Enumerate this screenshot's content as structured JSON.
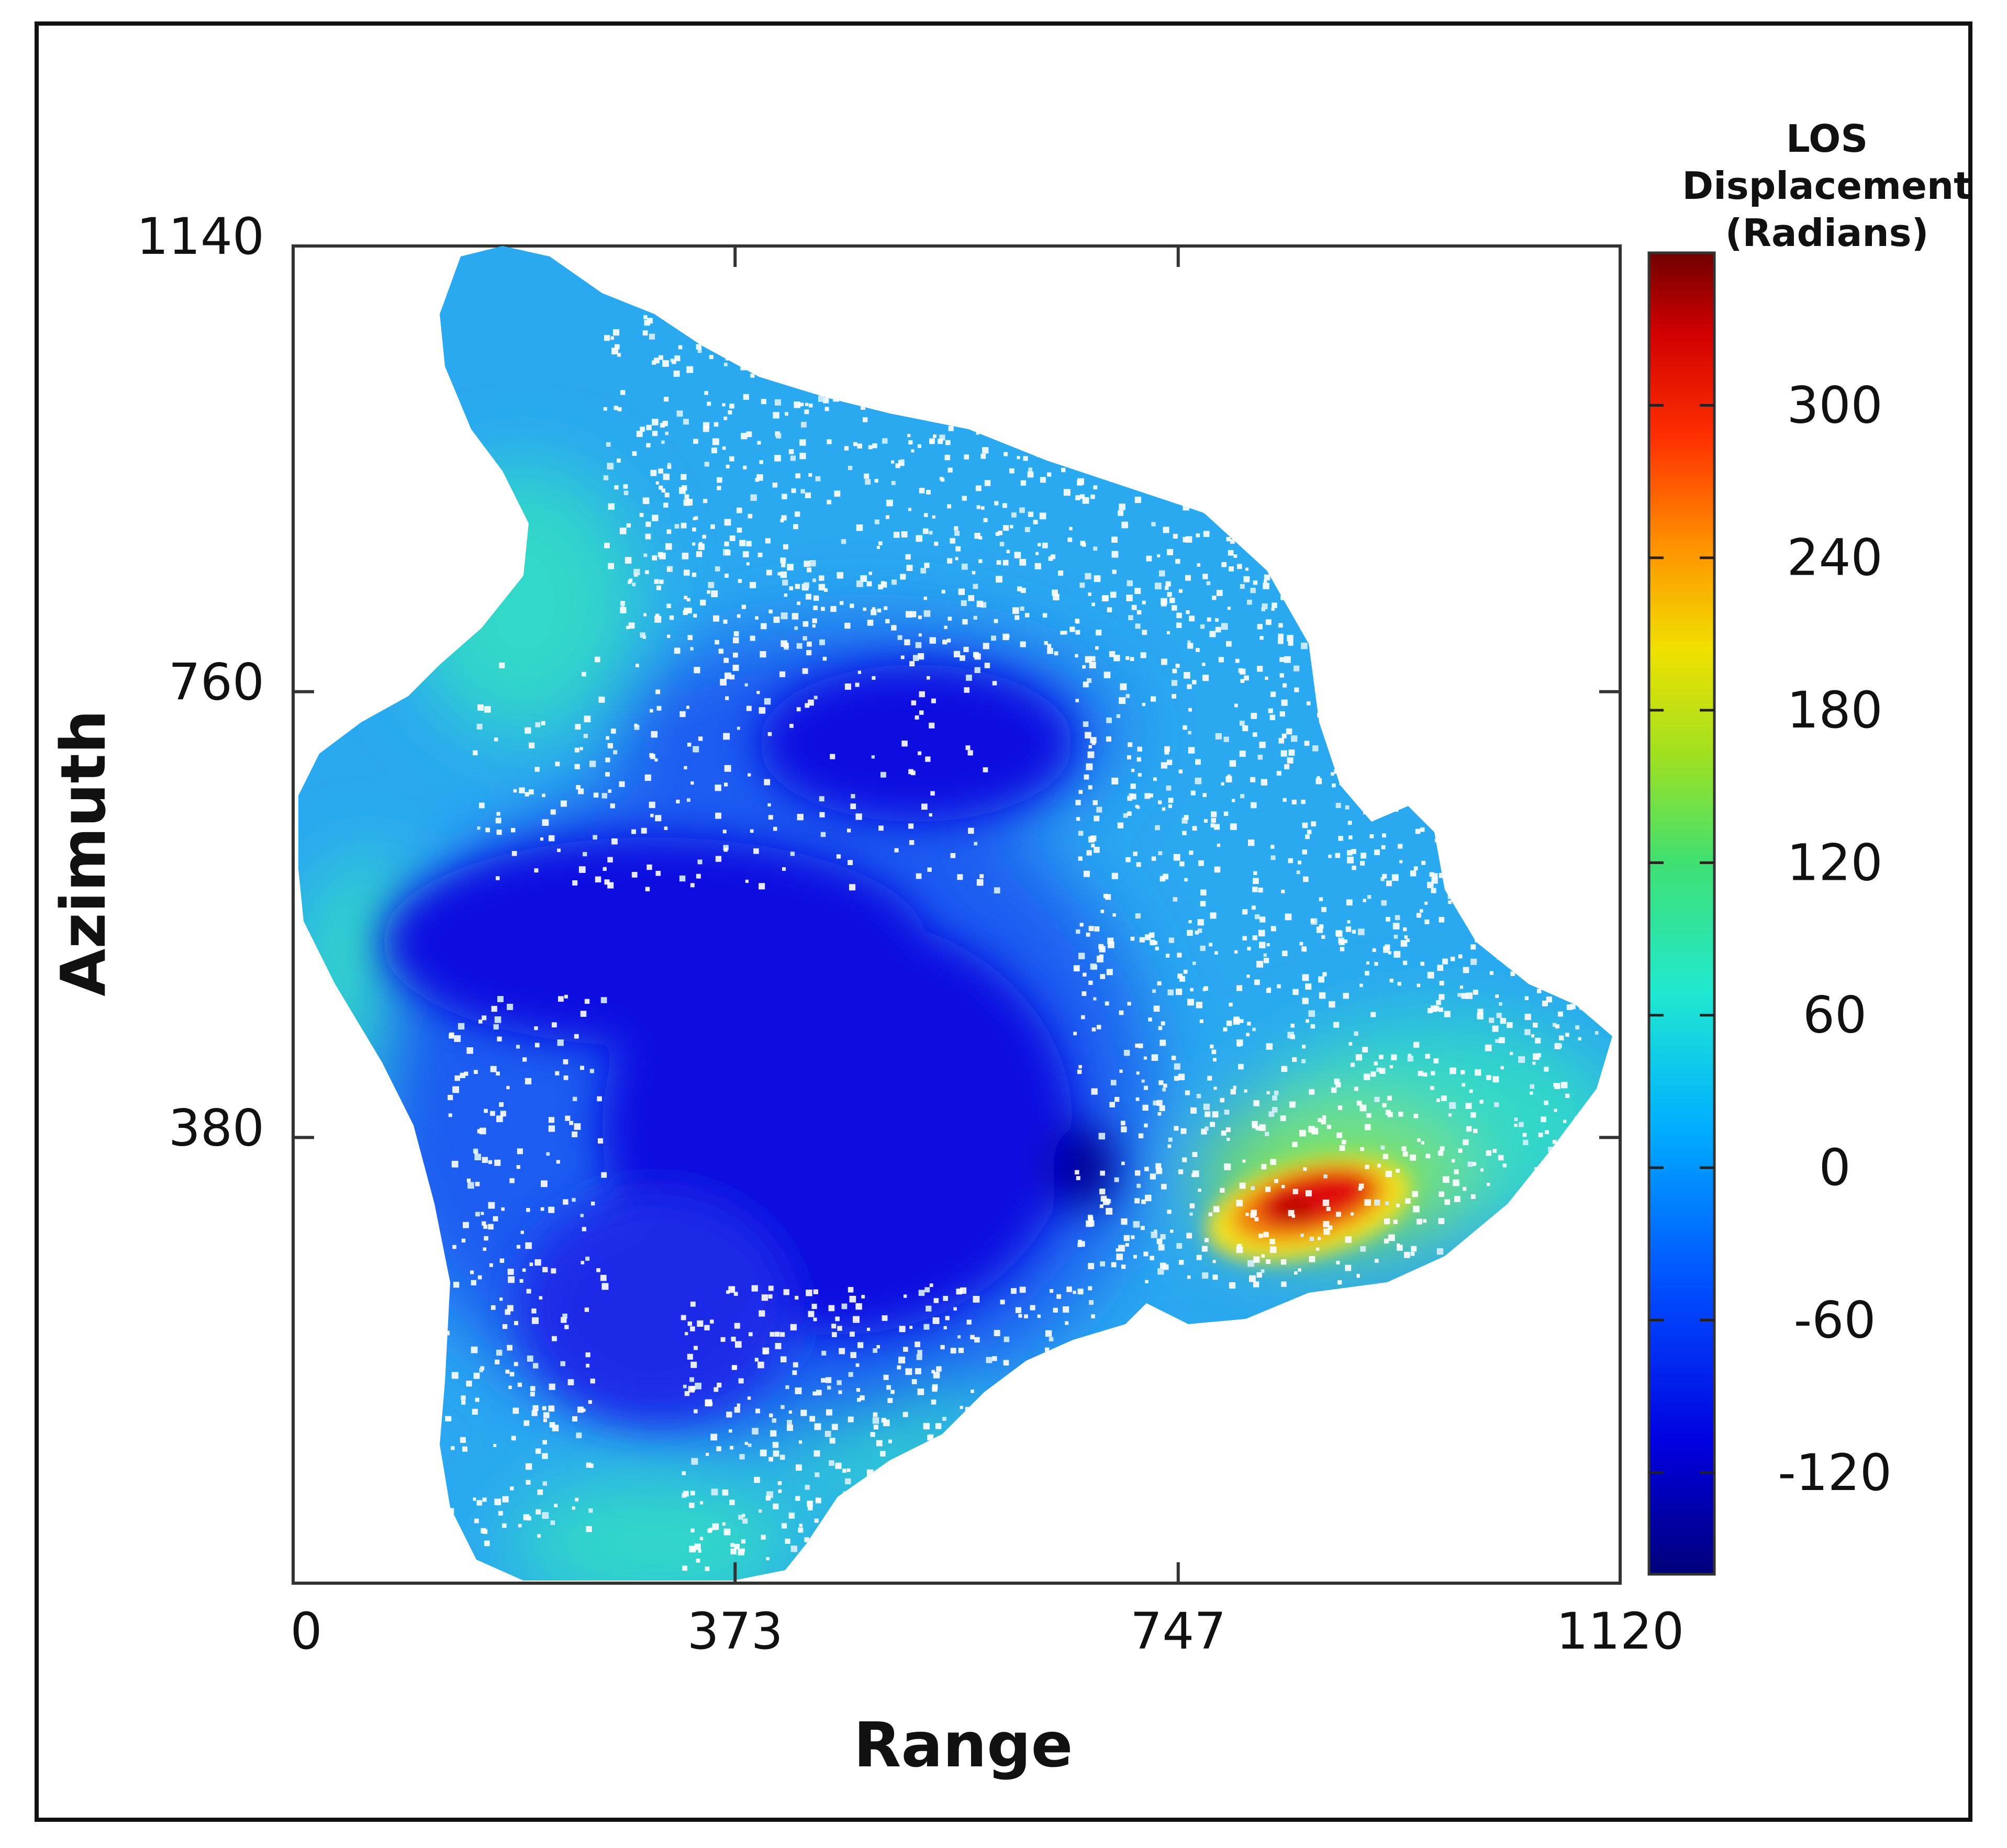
{
  "chart_data": {
    "type": "heatmap",
    "xlabel": "Range",
    "ylabel": "Azimuth",
    "xlim": [
      0,
      1120
    ],
    "ylim": [
      0,
      1140
    ],
    "x_ticks": [
      0,
      373,
      747,
      1120
    ],
    "y_ticks": [
      380,
      760,
      1140
    ],
    "grid": false,
    "colorbar": {
      "title_lines": [
        "LOS",
        "Displacement",
        "(Radians)"
      ],
      "colormap": "jet",
      "range": [
        -160,
        360
      ],
      "ticks": [
        300,
        240,
        180,
        120,
        60,
        0,
        -60,
        -120
      ]
    },
    "colors": {
      "deep_blue": "#1010e0",
      "blue": "#1f5cf0",
      "cyan": "#2aa8f0",
      "aqua": "#30d8c8",
      "green": "#7de060",
      "yellow": "#f0e020",
      "orange": "#f08010",
      "red": "#e01010",
      "dark_red": "#7a0000",
      "frame": "#111111",
      "background": "#ffffff"
    }
  }
}
